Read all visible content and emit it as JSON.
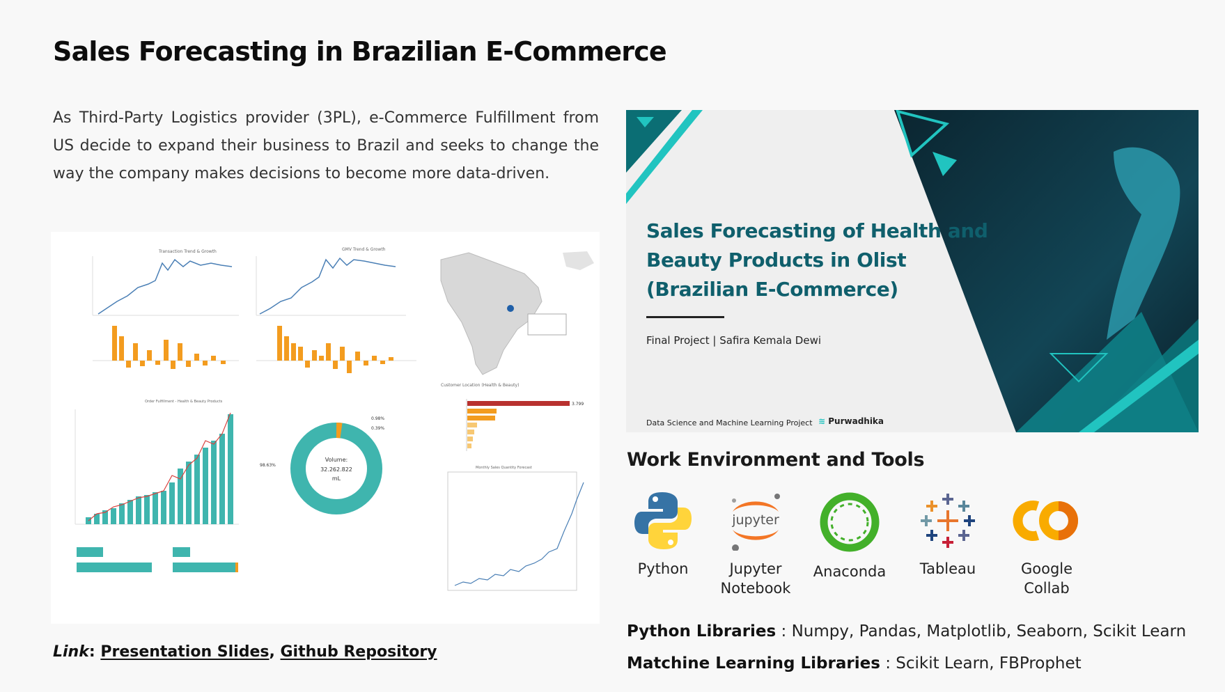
{
  "page": {
    "title": "Sales Forecasting in Brazilian E-Commerce",
    "description": "As Third-Party Logistics provider (3PL), e-Commerce Fulfillment from US decide to expand their business to Brazil and seeks to change the way the company makes decisions to become more data-driven."
  },
  "links": {
    "label": "Link",
    "separator": ":",
    "presentation": "Presentation Slides",
    "comma": ",",
    "github": "Github Repository"
  },
  "slide": {
    "title": "Sales Forecasting of Health and Beauty Products in Olist (Brazilian E-Commerce)",
    "subtitle": "Final Project  | Safira Kemala Dewi",
    "footer": "Data Science and Machine Learning Project",
    "logo_text": "Purwadhika",
    "colors": {
      "title": "#0f5f6c",
      "teal_dark": "#0b6e74",
      "teal_light": "#21c4c0"
    }
  },
  "dashboard": {
    "chart1_title": "Transaction Trend & Growth",
    "chart2_title": "GMV Trend & Growth",
    "chart3_title": "Order Fulfillment - Health & Beauty Products",
    "donut_center": [
      "Volume:",
      "32.262.822",
      "mL"
    ],
    "donut_labels": [
      "0.98%",
      "0.39%",
      "98.63%"
    ],
    "bar_title": "Customer Location (Health & Beauty)",
    "bar_value": "3.799",
    "forecast_title": "Monthly Sales Quantity Forecast",
    "colors": {
      "teal": "#3fb5ae",
      "orange": "#f39c1f",
      "blue": "#4a7fb5",
      "red": "#b8312f"
    }
  },
  "tools": {
    "heading": "Work Environment and Tools",
    "items": [
      {
        "label": "Python",
        "icon": "python-icon"
      },
      {
        "label": "Jupyter Notebook",
        "icon": "jupyter-icon"
      },
      {
        "label": "Anaconda",
        "icon": "anaconda-icon"
      },
      {
        "label": "Tableau",
        "icon": "tableau-icon"
      },
      {
        "label": "Google Collab",
        "icon": "colab-icon"
      }
    ]
  },
  "libraries": {
    "python_label": "Python Libraries",
    "python_value": " : Numpy, Pandas, Matplotlib, Seaborn, Scikit Learn",
    "ml_label": "Matchine Learning Libraries",
    "ml_value": " : Scikit Learn, FBProphet"
  }
}
